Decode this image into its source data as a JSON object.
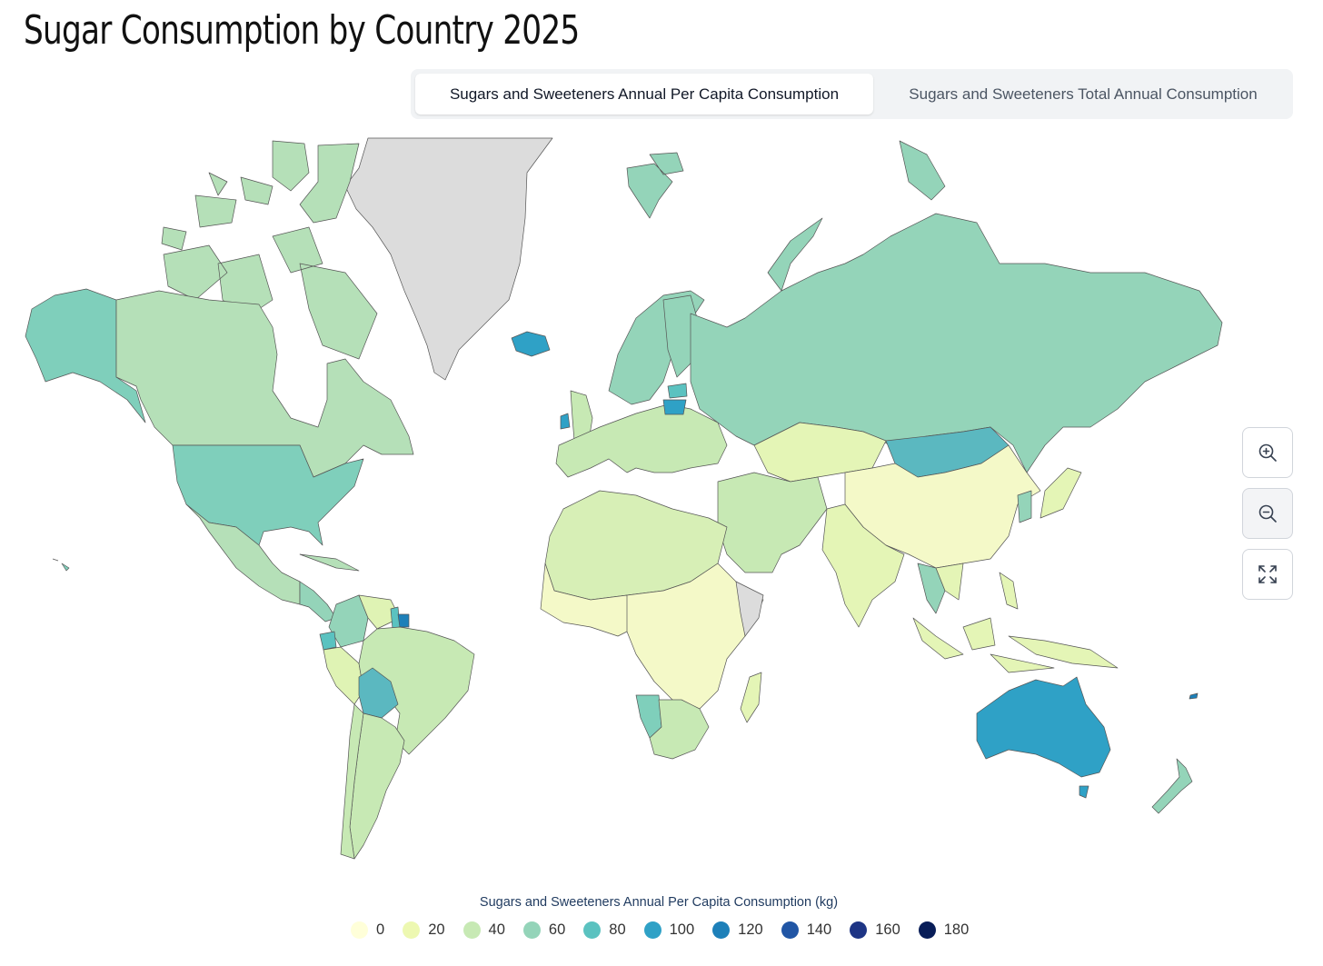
{
  "title": "Sugar Consumption by Country 2025",
  "tabs": [
    {
      "label": "Sugars and Sweeteners Annual Per Capita Consumption",
      "active": true
    },
    {
      "label": "Sugars and Sweeteners Total Annual Consumption",
      "active": false
    }
  ],
  "controls": {
    "zoom_in_icon": "zoom-in-icon",
    "zoom_out_icon": "zoom-out-icon",
    "fit_icon": "expand-icon"
  },
  "legend": {
    "title": "Sugars and Sweeteners Annual Per Capita Consumption (kg)",
    "items": [
      {
        "label": "0",
        "color": "#ffffd9"
      },
      {
        "label": "20",
        "color": "#edf8b1"
      },
      {
        "label": "40",
        "color": "#c7e9b4"
      },
      {
        "label": "60",
        "color": "#94d4b9"
      },
      {
        "label": "80",
        "color": "#5bc2c0"
      },
      {
        "label": "100",
        "color": "#2fa1c6"
      },
      {
        "label": "120",
        "color": "#1d80b9"
      },
      {
        "label": "140",
        "color": "#2156a5"
      },
      {
        "label": "160",
        "color": "#1e3585"
      },
      {
        "label": "180",
        "color": "#081d58"
      }
    ]
  },
  "no_data_color": "#dcdcdc",
  "map_data": {
    "metric": "Sugars and Sweeteners Annual Per Capita Consumption (kg)",
    "approx_values": {
      "United States": 70,
      "Canada": 45,
      "Mexico": 45,
      "Greenland": null,
      "Brazil": 40,
      "Bolivia": 85,
      "Ecuador": 85,
      "Colombia": 60,
      "Venezuela": 30,
      "Suriname": 120,
      "Guyana": 85,
      "Peru": 25,
      "Argentina": 40,
      "Chile": 40,
      "Russia": 60,
      "Mongolia": 85,
      "China": 10,
      "India": 25,
      "Australia": 100,
      "New Zealand": 60,
      "Iceland": 100,
      "Ireland": 100,
      "Lithuania": 105,
      "Latvia": 90,
      "Namibia": 75,
      "South Africa": 50,
      "Japan": 30,
      "Kazakhstan": 30,
      "Saudi Arabia": 40,
      "Egypt": 40,
      "Algeria": 35,
      "Nigeria": 10,
      "Madagascar": 20,
      "Indonesia": 25,
      "Thailand": 60,
      "Fiji": 130
    }
  }
}
